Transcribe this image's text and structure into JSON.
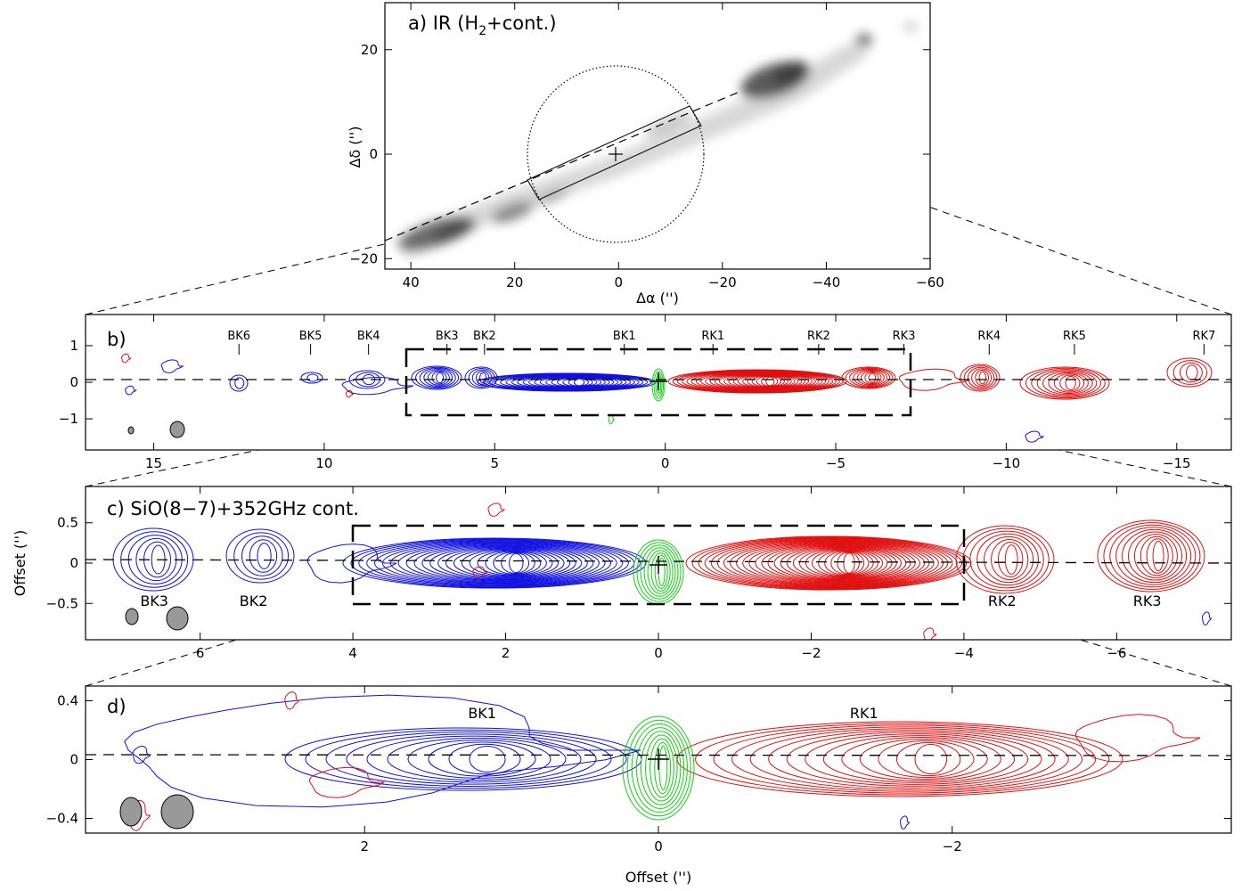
{
  "chart_data": [
    {
      "panel": "a",
      "type": "image",
      "title": "a) IR (H₂+cont.)",
      "xlabel": "Δα ('')",
      "ylabel": "Δδ ('')",
      "xlim": [
        45,
        -60
      ],
      "ylim": [
        -22,
        29
      ],
      "xticks": [
        40,
        20,
        0,
        -20,
        -40,
        -60
      ],
      "yticks": [
        20,
        0,
        -20
      ],
      "colors": {
        "image": "grayscale"
      }
    },
    {
      "panel": "b",
      "type": "contour",
      "title": "b)",
      "xlim": [
        17,
        -16.6
      ],
      "ylim": [
        -1.85,
        1.85
      ],
      "xticks": [
        15,
        10,
        5,
        0,
        -5,
        -10,
        -15
      ],
      "yticks": [
        1,
        0,
        -1
      ],
      "knots": [
        {
          "name": "BK6",
          "x": 12.5
        },
        {
          "name": "BK5",
          "x": 10.4
        },
        {
          "name": "BK4",
          "x": 8.7
        },
        {
          "name": "BK3",
          "x": 6.4
        },
        {
          "name": "BK2",
          "x": 5.3
        },
        {
          "name": "BK1",
          "x": 1.2
        },
        {
          "name": "RK1",
          "x": -1.4
        },
        {
          "name": "RK2",
          "x": -4.5
        },
        {
          "name": "RK3",
          "x": -7.0
        },
        {
          "name": "RK4",
          "x": -9.5
        },
        {
          "name": "RK5",
          "x": -12.0
        },
        {
          "name": "RK7",
          "x": -15.8
        }
      ],
      "colors": {
        "blue": "#1010e0",
        "red": "#e01010",
        "green": "#10d010"
      }
    },
    {
      "panel": "c",
      "type": "contour",
      "title": "c) SiO(8−7)+352GHz cont.",
      "ylabel": "Offset ('')",
      "xlim": [
        7.5,
        -7.5
      ],
      "ylim": [
        -0.95,
        0.95
      ],
      "xticks": [
        6,
        4,
        2,
        0,
        -2,
        -4,
        -6
      ],
      "yticks": [
        0.5,
        0,
        -0.5
      ],
      "ytick_labels": [
        "0.5",
        "0",
        "−0.5"
      ],
      "knots": [
        {
          "name": "BK3",
          "x": 6.6
        },
        {
          "name": "BK2",
          "x": 5.3
        },
        {
          "name": "RK2",
          "x": -4.5
        },
        {
          "name": "RK3",
          "x": -6.4
        }
      ]
    },
    {
      "panel": "d",
      "type": "contour",
      "title": "d)",
      "xlabel": "Offset ('')",
      "xlim": [
        3.9,
        -3.9
      ],
      "ylim": [
        -0.5,
        0.5
      ],
      "xticks": [
        2,
        0,
        -2
      ],
      "yticks": [
        0.4,
        0,
        -0.4
      ],
      "ytick_labels": [
        "0.4",
        "0",
        "−0.4"
      ],
      "knots": [
        {
          "name": "BK1",
          "x": 1.2
        },
        {
          "name": "RK1",
          "x": -1.4
        }
      ]
    }
  ]
}
